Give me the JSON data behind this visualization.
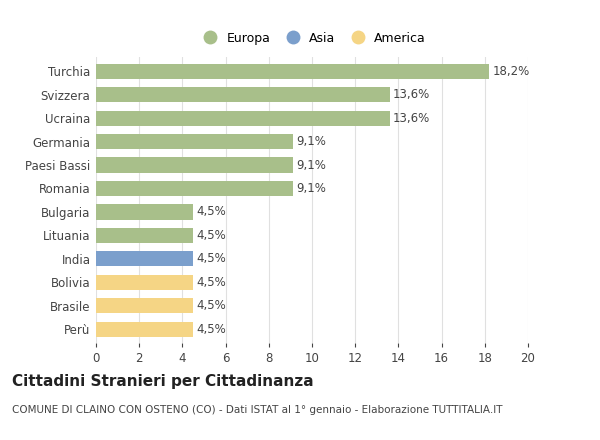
{
  "countries": [
    "Turchia",
    "Svizzera",
    "Ucraina",
    "Germania",
    "Paesi Bassi",
    "Romania",
    "Bulgaria",
    "Lituania",
    "India",
    "Bolivia",
    "Brasile",
    "Perù"
  ],
  "values": [
    18.2,
    13.6,
    13.6,
    9.1,
    9.1,
    9.1,
    4.5,
    4.5,
    4.5,
    4.5,
    4.5,
    4.5
  ],
  "labels": [
    "18,2%",
    "13,6%",
    "13,6%",
    "9,1%",
    "9,1%",
    "9,1%",
    "4,5%",
    "4,5%",
    "4,5%",
    "4,5%",
    "4,5%",
    "4,5%"
  ],
  "colors": [
    "#a8bf8a",
    "#a8bf8a",
    "#a8bf8a",
    "#a8bf8a",
    "#a8bf8a",
    "#a8bf8a",
    "#a8bf8a",
    "#a8bf8a",
    "#7b9fcc",
    "#f5d585",
    "#f5d585",
    "#f5d585"
  ],
  "categories_names": [
    "Europa",
    "Asia",
    "America"
  ],
  "categories_colors": [
    "#a8bf8a",
    "#7b9fcc",
    "#f5d585"
  ],
  "xlim": [
    0,
    20
  ],
  "xticks": [
    0,
    2,
    4,
    6,
    8,
    10,
    12,
    14,
    16,
    18,
    20
  ],
  "title": "Cittadini Stranieri per Cittadinanza",
  "subtitle": "COMUNE DI CLAINO CON OSTENO (CO) - Dati ISTAT al 1° gennaio - Elaborazione TUTTITALIA.IT",
  "background_color": "#ffffff",
  "bar_height": 0.65,
  "grid_color": "#e0e0e0",
  "text_color": "#444444",
  "label_fontsize": 8.5,
  "ytick_fontsize": 8.5,
  "xtick_fontsize": 8.5,
  "title_fontsize": 11,
  "subtitle_fontsize": 7.5,
  "legend_fontsize": 9
}
